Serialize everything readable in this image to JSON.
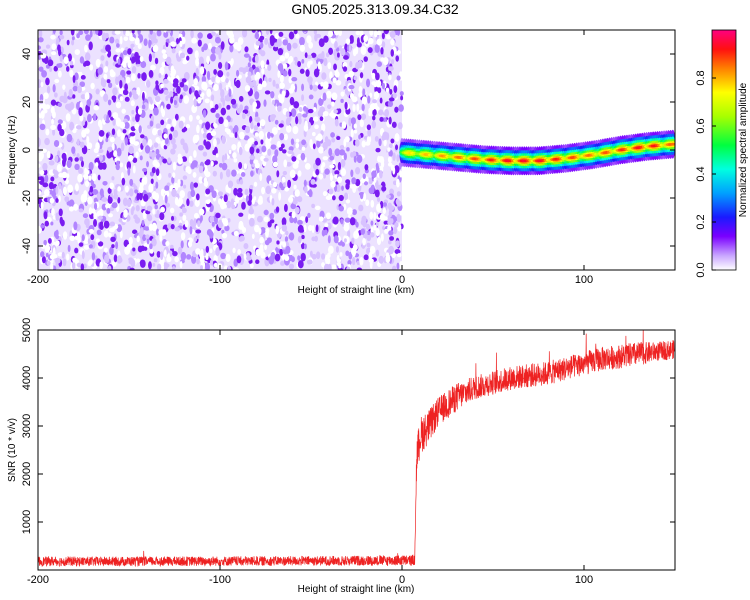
{
  "title": "GN05.2025.313.09.34.C32",
  "chart_data": [
    {
      "type": "heatmap",
      "xlabel": "Height of straight line (km)",
      "ylabel": "Frequency (Hz)",
      "xlim": [
        -200,
        150
      ],
      "ylim": [
        -50,
        50
      ],
      "xticks": [
        -200,
        -100,
        0,
        100
      ],
      "xtick_labels": [
        "-200",
        "-100",
        "0",
        "100"
      ],
      "yticks": [
        -40,
        -20,
        0,
        20,
        40
      ],
      "ytick_labels": [
        "-40",
        "-20",
        "0",
        "20",
        "40"
      ],
      "noise_region_x": [
        -200,
        0
      ],
      "signal_region_x": [
        0,
        150
      ],
      "ridge": {
        "x": [
          0,
          15,
          30,
          45,
          60,
          75,
          90,
          105,
          120,
          135,
          150
        ],
        "freq": [
          -1,
          -2,
          -3,
          -4,
          -4.5,
          -4.5,
          -3.5,
          -2,
          0,
          1.5,
          2.5
        ],
        "amp": [
          0.75,
          0.8,
          0.85,
          0.9,
          0.95,
          0.95,
          0.9,
          0.85,
          0.9,
          0.95,
          0.85
        ]
      },
      "colorbar": {
        "label": "Normalized spectral amplitude",
        "range": [
          0,
          1
        ],
        "ticks": [
          0.0,
          0.2,
          0.4,
          0.6,
          0.8
        ],
        "tick_labels": [
          "0.0",
          "0.2",
          "0.4",
          "0.6",
          "0.8"
        ]
      },
      "grid": false
    },
    {
      "type": "line",
      "xlabel": "Height of straight line (km)",
      "ylabel": "SNR (10 * v/v)",
      "xlim": [
        -200,
        150
      ],
      "ylim": [
        0,
        5000
      ],
      "xticks": [
        -200,
        -100,
        0,
        100
      ],
      "xtick_labels": [
        "-200",
        "-100",
        "0",
        "100"
      ],
      "yticks": [
        1000,
        2000,
        3000,
        4000,
        5000
      ],
      "ytick_labels": [
        "1000",
        "2000",
        "3000",
        "4000",
        "5000"
      ],
      "series": [
        {
          "color": "#ee2222",
          "x": [
            -200,
            -150,
            -100,
            -50,
            0,
            5,
            7,
            8,
            10,
            15,
            20,
            30,
            40,
            50,
            60,
            70,
            80,
            90,
            100,
            110,
            120,
            130,
            140,
            150
          ],
          "y": [
            180,
            180,
            185,
            190,
            200,
            200,
            200,
            2300,
            2800,
            3000,
            3300,
            3600,
            3800,
            3900,
            4000,
            4050,
            4100,
            4200,
            4300,
            4400,
            4450,
            4500,
            4550,
            4600
          ],
          "noise_amplitude": [
            100,
            100,
            100,
            100,
            110,
            110,
            110,
            400,
            400,
            350,
            300,
            300,
            250,
            250,
            250,
            250,
            250,
            250,
            250,
            250,
            250,
            250,
            200,
            200
          ]
        }
      ],
      "grid": false
    }
  ]
}
